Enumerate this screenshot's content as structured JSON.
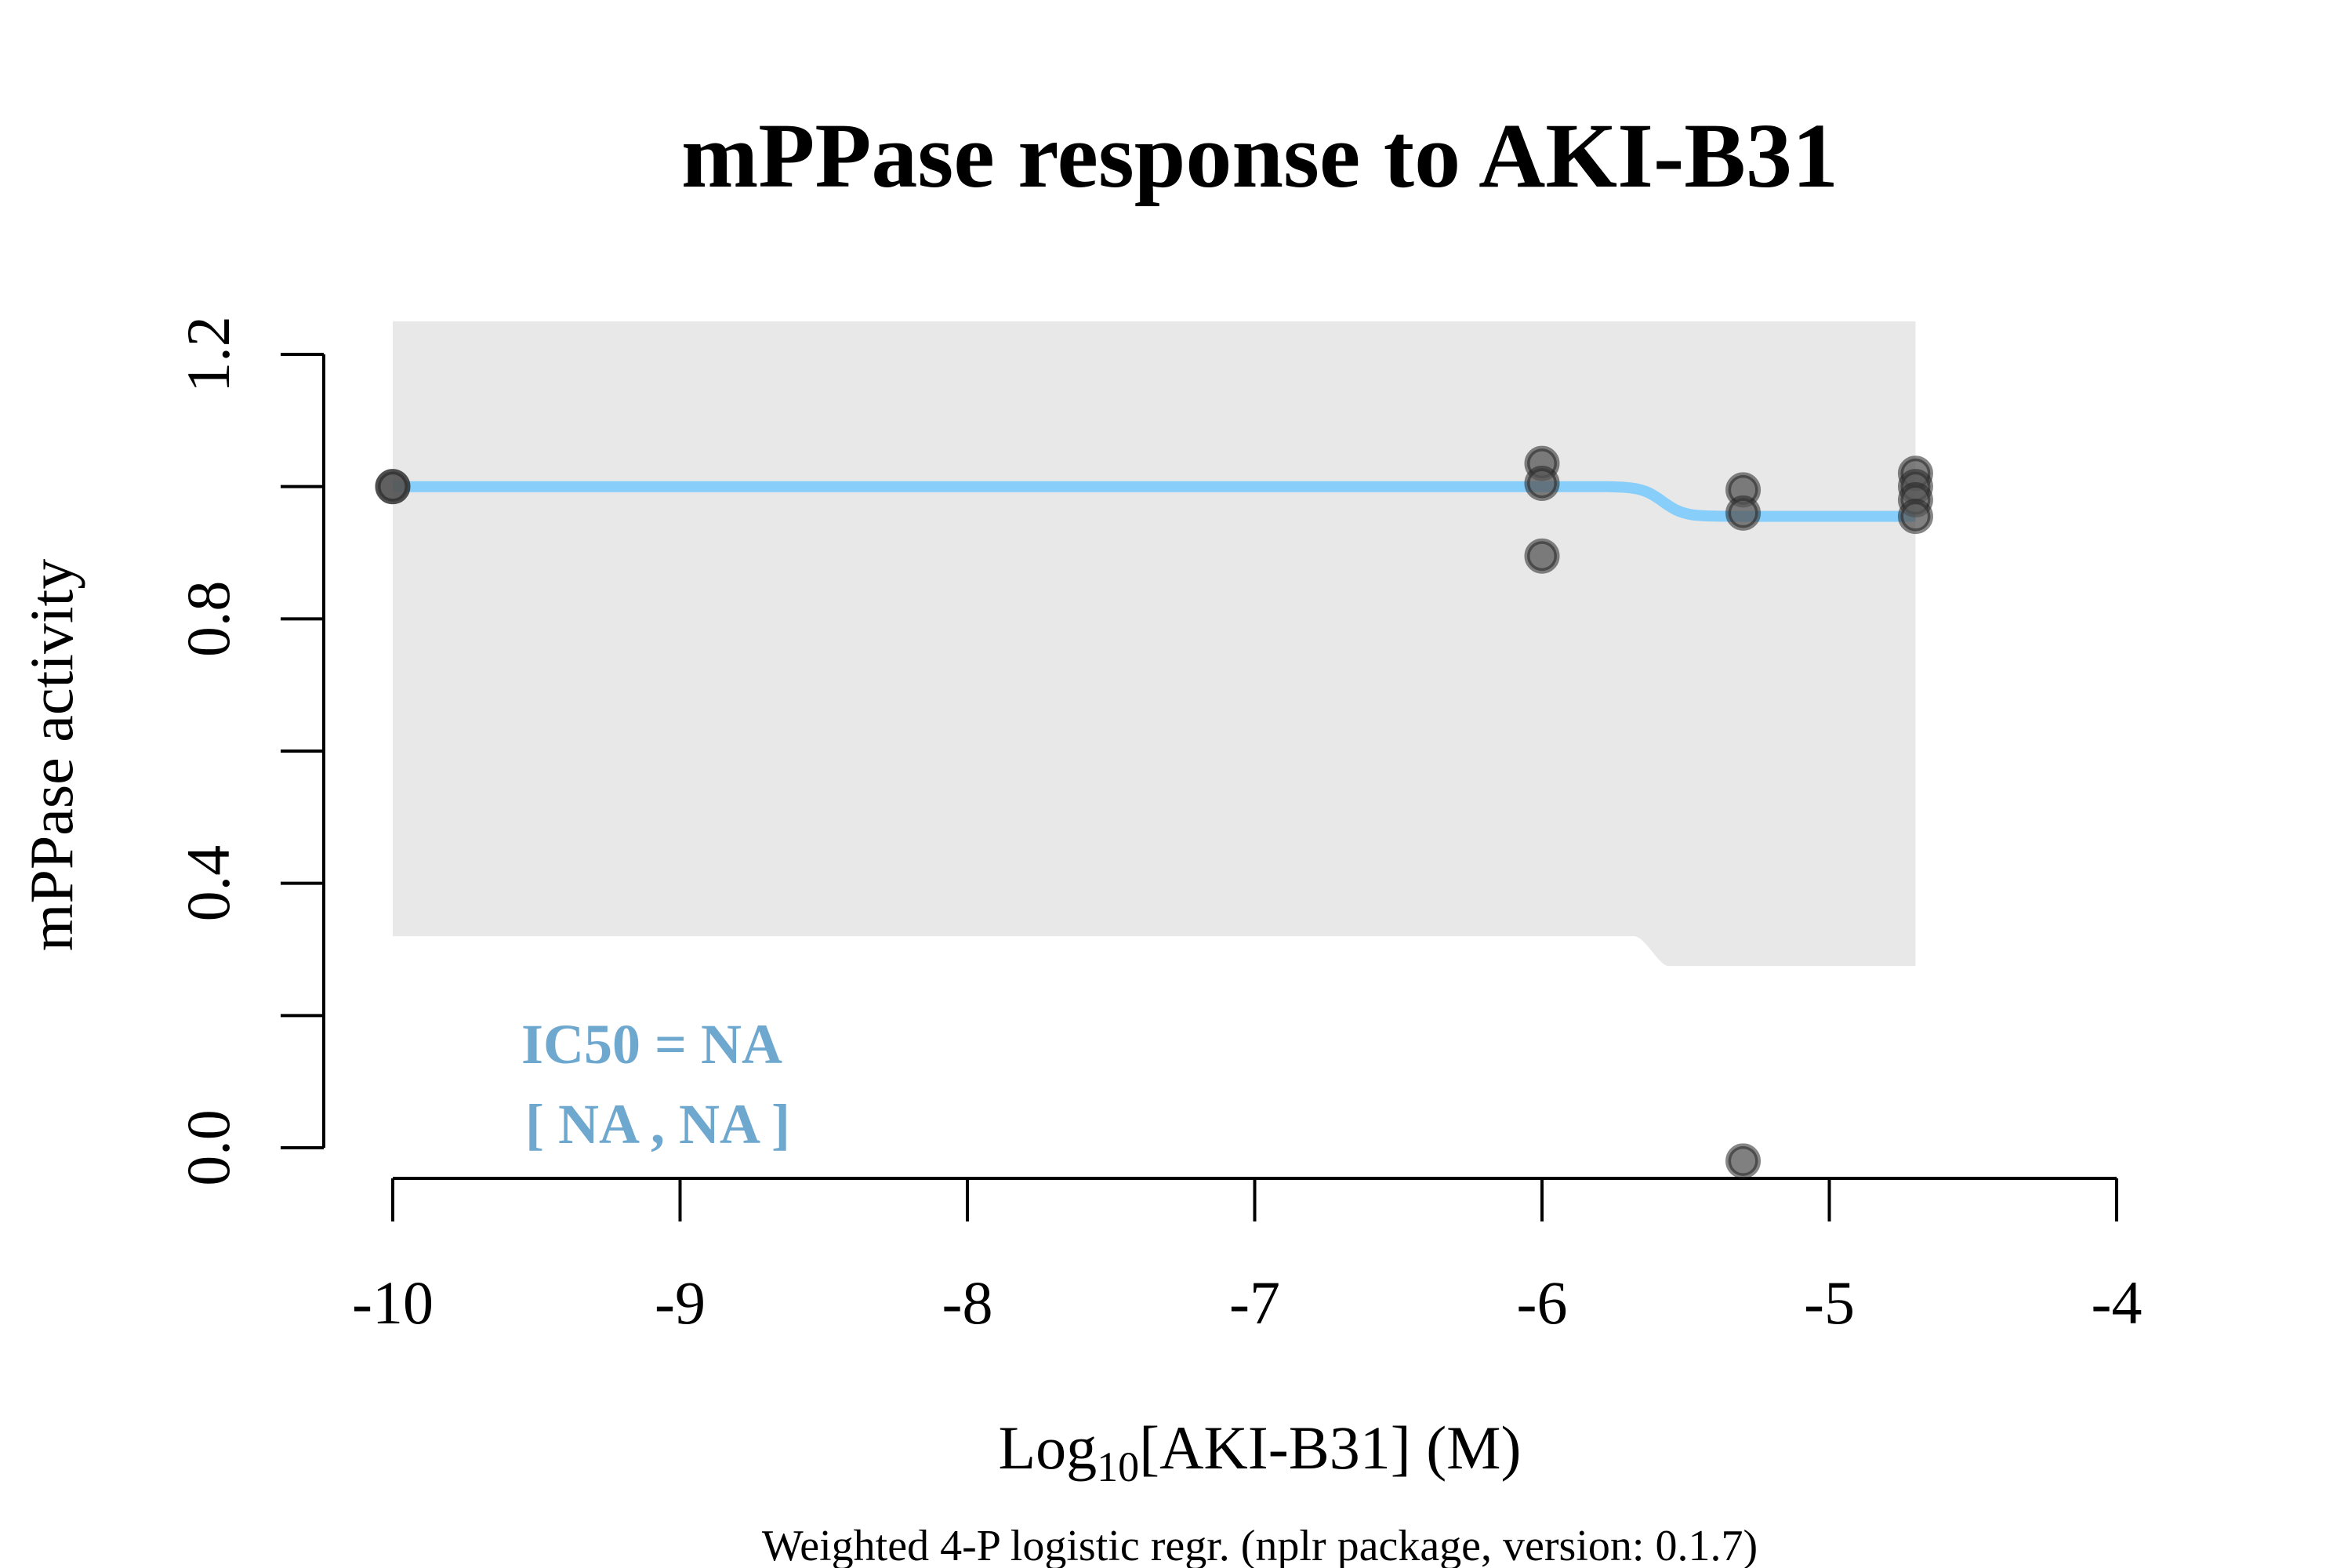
{
  "chart_data": {
    "type": "scatter",
    "title": "mPPase response to AKI-B31",
    "xlabel_main": "Log",
    "xlabel_sub": "10",
    "xlabel_rest": "[AKI-B31] (M)",
    "ylabel": "mPPase activity",
    "caption": "Weighted 4-P logistic regr. (nplr package, version: 0.1.7)",
    "xlim": [
      -10,
      -4
    ],
    "ylim": [
      0,
      1.2
    ],
    "x_ticks": [
      -10,
      -9,
      -8,
      -7,
      -6,
      -5,
      -4
    ],
    "x_tick_labels": [
      "-10",
      "-9",
      "-8",
      "-7",
      "-6",
      "-5",
      "-4"
    ],
    "y_ticks": [
      0,
      0.2,
      0.4,
      0.6,
      0.8,
      1.0,
      1.2
    ],
    "y_tick_labels": [
      "0.0",
      "",
      "0.4",
      "",
      "0.8",
      "",
      "1.2"
    ],
    "points": [
      {
        "x": -10,
        "y": 1.0
      },
      {
        "x": -10,
        "y": 1.0
      },
      {
        "x": -6,
        "y": 1.035
      },
      {
        "x": -6,
        "y": 1.005
      },
      {
        "x": -6,
        "y": 0.895
      },
      {
        "x": -5.3,
        "y": 0.995
      },
      {
        "x": -5.3,
        "y": 0.96
      },
      {
        "x": -5.3,
        "y": -0.02
      },
      {
        "x": -4.7,
        "y": 1.02
      },
      {
        "x": -4.7,
        "y": 1.0
      },
      {
        "x": -4.7,
        "y": 0.98
      },
      {
        "x": -4.7,
        "y": 0.955
      }
    ],
    "fit_curve": {
      "top": 1.0,
      "bottom": 0.955,
      "ic50_log": -5.58,
      "x_range": [
        -10,
        -4.7
      ],
      "color": "#87CEFA"
    },
    "confidence_band": {
      "upper": 1.25,
      "lower_left": 0.32,
      "lower_right": 0.275,
      "color": "#E8E8E8"
    },
    "annotation": {
      "line1": "IC50 = NA",
      "line2": "[ NA , NA ]",
      "color": "#6FA8CF"
    },
    "point_color": "#555555"
  }
}
